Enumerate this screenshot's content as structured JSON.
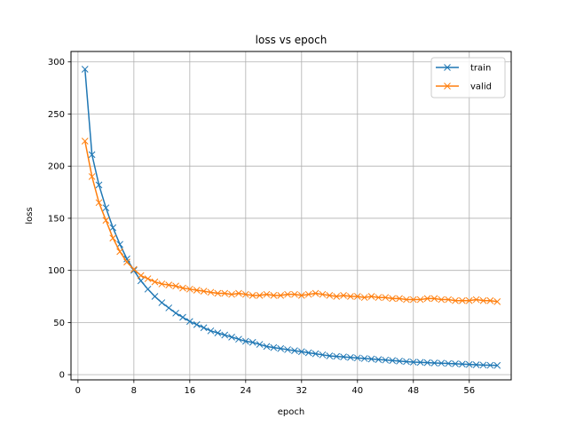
{
  "chart_data": {
    "type": "line",
    "title": "loss vs epoch",
    "xlabel": "epoch",
    "ylabel": "loss",
    "xlim": [
      -1,
      62
    ],
    "ylim": [
      -5,
      310
    ],
    "xticks": [
      0,
      8,
      16,
      24,
      32,
      40,
      48,
      56
    ],
    "yticks": [
      0,
      50,
      100,
      150,
      200,
      250,
      300
    ],
    "grid": true,
    "legend_position": "top-right",
    "marker": "x",
    "x": [
      1,
      2,
      3,
      4,
      5,
      6,
      7,
      8,
      9,
      10,
      11,
      12,
      13,
      14,
      15,
      16,
      17,
      18,
      19,
      20,
      21,
      22,
      23,
      24,
      25,
      26,
      27,
      28,
      29,
      30,
      31,
      32,
      33,
      34,
      35,
      36,
      37,
      38,
      39,
      40,
      41,
      42,
      43,
      44,
      45,
      46,
      47,
      48,
      49,
      50,
      51,
      52,
      53,
      54,
      55,
      56,
      57,
      58,
      59,
      60
    ],
    "series": [
      {
        "name": "train",
        "color": "#1f77b4",
        "values": [
          293,
          211,
          182,
          160,
          141,
          125,
          111,
          100,
          90,
          82,
          75,
          69,
          64,
          59,
          55,
          51,
          48,
          45,
          42,
          40,
          38,
          36,
          34,
          32,
          31,
          29,
          27,
          26,
          25,
          24,
          23,
          22,
          21,
          20,
          19,
          18,
          17.5,
          17,
          16.5,
          16,
          15.5,
          15,
          14.5,
          14,
          13.5,
          13,
          12.5,
          12,
          11.8,
          11.5,
          11.2,
          11,
          10.7,
          10.4,
          10.1,
          9.8,
          9.5,
          9.2,
          9,
          8.8
        ]
      },
      {
        "name": "valid",
        "color": "#ff7f0e",
        "values": [
          224,
          190,
          165,
          148,
          131,
          118,
          108,
          101,
          95,
          92,
          89,
          87,
          86,
          85,
          83,
          82,
          81,
          80,
          79,
          78,
          78,
          77,
          78,
          77,
          76,
          76,
          77,
          76,
          76,
          77,
          77,
          76,
          77,
          78,
          77,
          76,
          75,
          76,
          75,
          75,
          74,
          75,
          74,
          74,
          73,
          73,
          72,
          72,
          72,
          73,
          73,
          72,
          72,
          71,
          71,
          71,
          72,
          71,
          71,
          70
        ]
      }
    ]
  }
}
